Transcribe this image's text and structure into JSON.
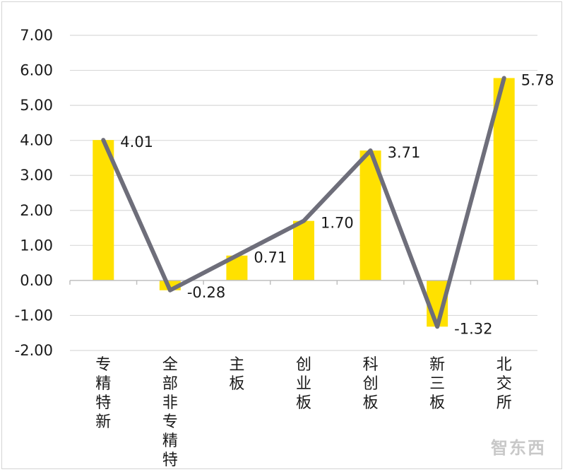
{
  "chart_data": {
    "type": "bar",
    "categories": [
      "专精特新",
      "全部非专精特新",
      "主板",
      "创业板",
      "科创板",
      "新三板",
      "北交所"
    ],
    "values": [
      4.01,
      -0.28,
      0.71,
      1.7,
      3.71,
      -1.32,
      5.78
    ],
    "value_labels": [
      "4.01",
      "-0.28",
      "0.71",
      "1.70",
      "3.71",
      "-1.32",
      "5.78"
    ],
    "ylim": [
      -2,
      7
    ],
    "y_ticks": [
      7,
      6,
      5,
      4,
      3,
      2,
      1,
      0,
      -1,
      -2
    ],
    "y_tick_labels": [
      "7.00",
      "6.00",
      "5.00",
      "4.00",
      "3.00",
      "2.00",
      "1.00",
      "0.00",
      "-1.00",
      "-2.00"
    ],
    "overlay": "line",
    "grid": true,
    "title": "",
    "xlabel": "",
    "ylabel": "",
    "colors": {
      "bar": "#FFE100",
      "line": "#6E6E7A",
      "grid": "#D9D9D9",
      "axis": "#BFBFBF"
    }
  },
  "watermark": {
    "text": "智东西"
  }
}
